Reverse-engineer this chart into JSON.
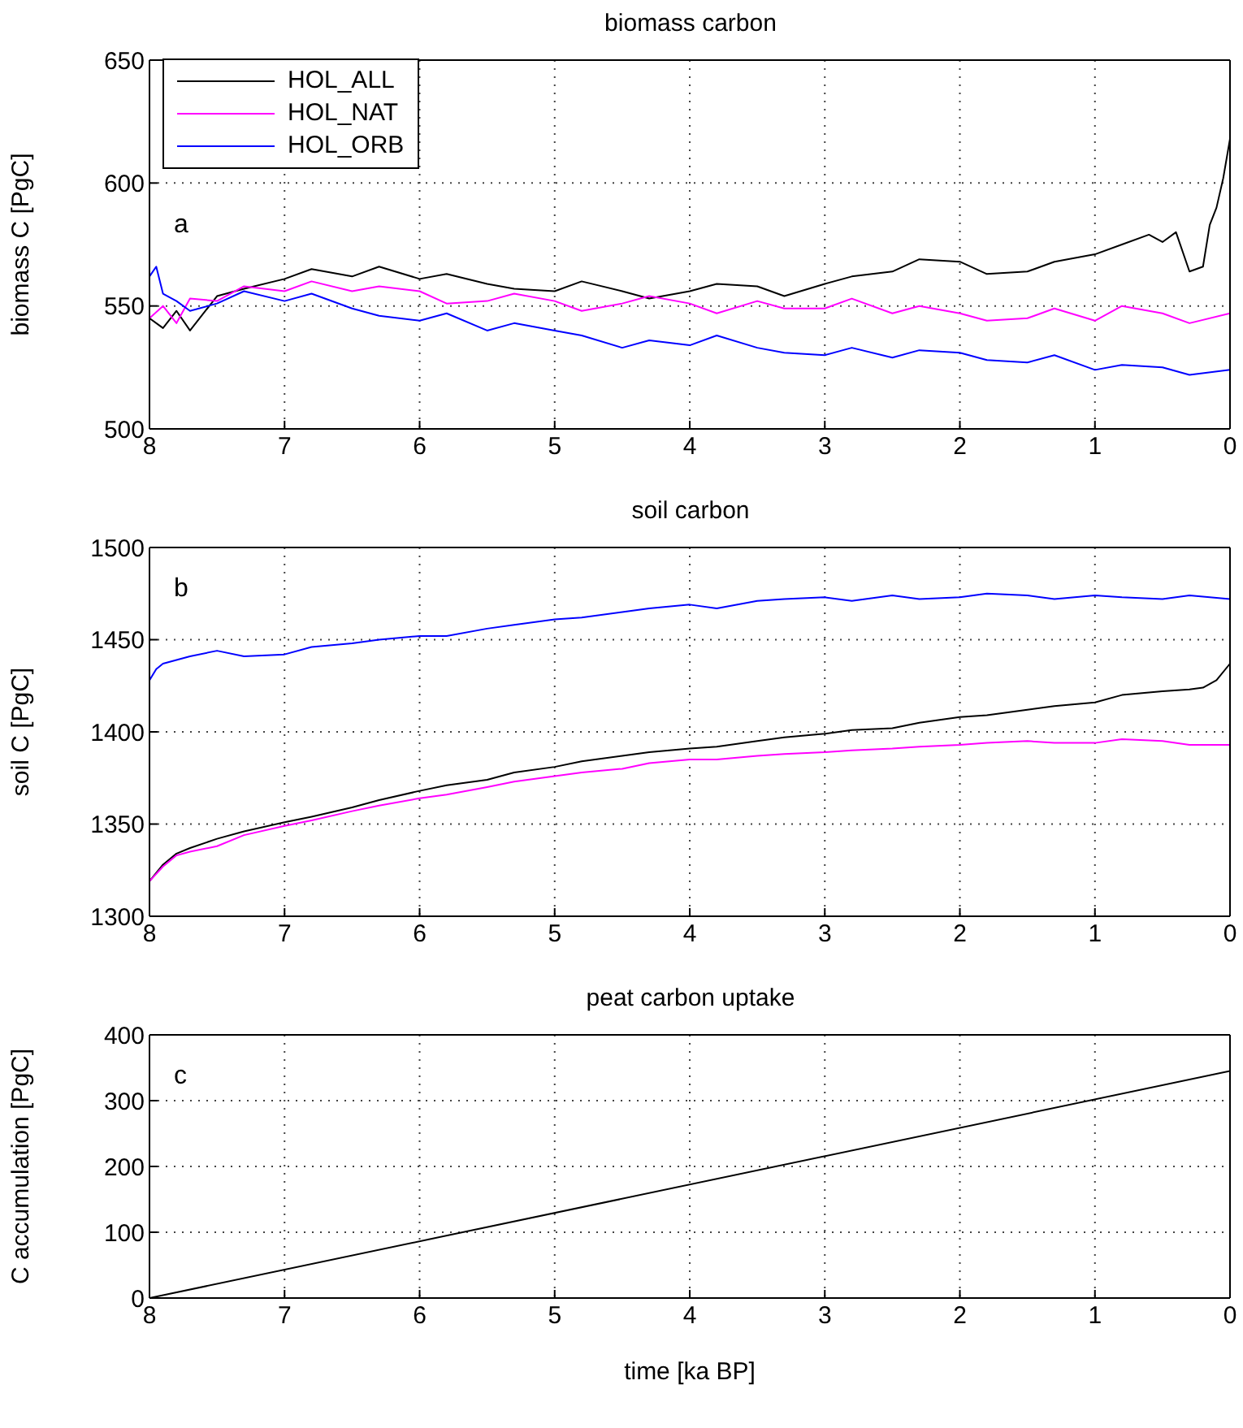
{
  "chart_data": [
    {
      "type": "line",
      "title": "biomass carbon",
      "ylabel": "biomass C [PgC]",
      "annotations": [
        "a"
      ],
      "xlim": [
        8,
        0
      ],
      "xticks": [
        8,
        7,
        6,
        5,
        4,
        3,
        2,
        1,
        0
      ],
      "ylim": [
        500,
        650
      ],
      "yticks": [
        500,
        550,
        600,
        650
      ],
      "grid": true,
      "legend": "top left",
      "marker": "none",
      "line_style": "solid",
      "series": [
        {
          "name": "HOL_ALL",
          "color": "#000000",
          "x": [
            8,
            7.9,
            7.8,
            7.7,
            7.5,
            7.3,
            7,
            6.8,
            6.5,
            6.3,
            6,
            5.8,
            5.5,
            5.3,
            5,
            4.8,
            4.5,
            4.3,
            4,
            3.8,
            3.5,
            3.3,
            3,
            2.8,
            2.5,
            2.3,
            2,
            1.8,
            1.5,
            1.3,
            1,
            0.8,
            0.6,
            0.5,
            0.4,
            0.3,
            0.2,
            0.15,
            0.1,
            0.05,
            0
          ],
          "values": [
            545,
            541,
            548,
            540,
            554,
            557,
            561,
            565,
            562,
            566,
            561,
            563,
            559,
            557,
            556,
            560,
            556,
            553,
            556,
            559,
            558,
            554,
            559,
            562,
            564,
            569,
            568,
            563,
            564,
            568,
            571,
            575,
            579,
            576,
            580,
            564,
            566,
            583,
            590,
            602,
            618
          ]
        },
        {
          "name": "HOL_NAT",
          "color": "#ff00ff",
          "x": [
            8,
            7.9,
            7.8,
            7.7,
            7.5,
            7.3,
            7,
            6.8,
            6.5,
            6.3,
            6,
            5.8,
            5.5,
            5.3,
            5,
            4.8,
            4.5,
            4.3,
            4,
            3.8,
            3.5,
            3.3,
            3,
            2.8,
            2.5,
            2.3,
            2,
            1.8,
            1.5,
            1.3,
            1,
            0.8,
            0.5,
            0.3,
            0
          ],
          "values": [
            545,
            550,
            543,
            553,
            552,
            558,
            556,
            560,
            556,
            558,
            556,
            551,
            552,
            555,
            552,
            548,
            551,
            554,
            551,
            547,
            552,
            549,
            549,
            553,
            547,
            550,
            547,
            544,
            545,
            549,
            544,
            550,
            547,
            543,
            547
          ]
        },
        {
          "name": "HOL_ORB",
          "color": "#0000ff",
          "x": [
            8,
            7.95,
            7.9,
            7.8,
            7.7,
            7.5,
            7.3,
            7,
            6.8,
            6.5,
            6.3,
            6,
            5.8,
            5.5,
            5.3,
            5,
            4.8,
            4.5,
            4.3,
            4,
            3.8,
            3.5,
            3.3,
            3,
            2.8,
            2.5,
            2.3,
            2,
            1.8,
            1.5,
            1.3,
            1,
            0.8,
            0.5,
            0.3,
            0
          ],
          "values": [
            562,
            566,
            555,
            552,
            548,
            551,
            556,
            552,
            555,
            549,
            546,
            544,
            547,
            540,
            543,
            540,
            538,
            533,
            536,
            534,
            538,
            533,
            531,
            530,
            533,
            529,
            532,
            531,
            528,
            527,
            530,
            524,
            526,
            525,
            522,
            524
          ]
        }
      ]
    },
    {
      "type": "line",
      "title": "soil carbon",
      "ylabel": "soil C [PgC]",
      "annotations": [
        "b"
      ],
      "xlim": [
        8,
        0
      ],
      "xticks": [
        8,
        7,
        6,
        5,
        4,
        3,
        2,
        1,
        0
      ],
      "ylim": [
        1300,
        1500
      ],
      "yticks": [
        1300,
        1350,
        1400,
        1450,
        1500
      ],
      "grid": true,
      "marker": "none",
      "line_style": "solid",
      "series": [
        {
          "color": "#0000ff",
          "x": [
            8,
            7.95,
            7.9,
            7.7,
            7.5,
            7.3,
            7,
            6.8,
            6.5,
            6.3,
            6,
            5.8,
            5.5,
            5.3,
            5,
            4.8,
            4.5,
            4.3,
            4,
            3.8,
            3.5,
            3.3,
            3,
            2.8,
            2.5,
            2.3,
            2,
            1.8,
            1.5,
            1.3,
            1,
            0.8,
            0.5,
            0.3,
            0
          ],
          "values": [
            1428,
            1434,
            1437,
            1441,
            1444,
            1441,
            1442,
            1446,
            1448,
            1450,
            1452,
            1452,
            1456,
            1458,
            1461,
            1462,
            1465,
            1467,
            1469,
            1467,
            1471,
            1472,
            1473,
            1471,
            1474,
            1472,
            1473,
            1475,
            1474,
            1472,
            1474,
            1473,
            1472,
            1474,
            1472
          ]
        },
        {
          "color": "#000000",
          "x": [
            8,
            7.9,
            7.8,
            7.7,
            7.5,
            7.3,
            7,
            6.8,
            6.5,
            6.3,
            6,
            5.8,
            5.5,
            5.3,
            5,
            4.8,
            4.5,
            4.3,
            4,
            3.8,
            3.5,
            3.3,
            3,
            2.8,
            2.5,
            2.3,
            2,
            1.8,
            1.5,
            1.3,
            1,
            0.8,
            0.5,
            0.3,
            0.2,
            0.1,
            0
          ],
          "values": [
            1319,
            1328,
            1334,
            1337,
            1342,
            1346,
            1351,
            1354,
            1359,
            1363,
            1368,
            1371,
            1374,
            1378,
            1381,
            1384,
            1387,
            1389,
            1391,
            1392,
            1395,
            1397,
            1399,
            1401,
            1402,
            1405,
            1408,
            1409,
            1412,
            1414,
            1416,
            1420,
            1422,
            1423,
            1424,
            1428,
            1437
          ]
        },
        {
          "color": "#ff00ff",
          "x": [
            8,
            7.9,
            7.8,
            7.7,
            7.5,
            7.3,
            7,
            6.8,
            6.5,
            6.3,
            6,
            5.8,
            5.5,
            5.3,
            5,
            4.8,
            4.5,
            4.3,
            4,
            3.8,
            3.5,
            3.3,
            3,
            2.8,
            2.5,
            2.3,
            2,
            1.8,
            1.5,
            1.3,
            1,
            0.8,
            0.5,
            0.3,
            0
          ],
          "values": [
            1319,
            1327,
            1333,
            1335,
            1338,
            1344,
            1349,
            1352,
            1357,
            1360,
            1364,
            1366,
            1370,
            1373,
            1376,
            1378,
            1380,
            1383,
            1385,
            1385,
            1387,
            1388,
            1389,
            1390,
            1391,
            1392,
            1393,
            1394,
            1395,
            1394,
            1394,
            1396,
            1395,
            1393,
            1393
          ]
        }
      ]
    },
    {
      "type": "line",
      "title": "peat carbon uptake",
      "xlabel": "time [ka BP]",
      "ylabel": "C accumulation [PgC]",
      "annotations": [
        "c"
      ],
      "xlim": [
        8,
        0
      ],
      "xticks": [
        8,
        7,
        6,
        5,
        4,
        3,
        2,
        1,
        0
      ],
      "ylim": [
        0,
        400
      ],
      "yticks": [
        0,
        100,
        200,
        300,
        400
      ],
      "grid": true,
      "marker": "none",
      "line_style": "solid",
      "series": [
        {
          "color": "#000000",
          "x": [
            8,
            0
          ],
          "values": [
            0,
            345
          ]
        }
      ]
    }
  ]
}
